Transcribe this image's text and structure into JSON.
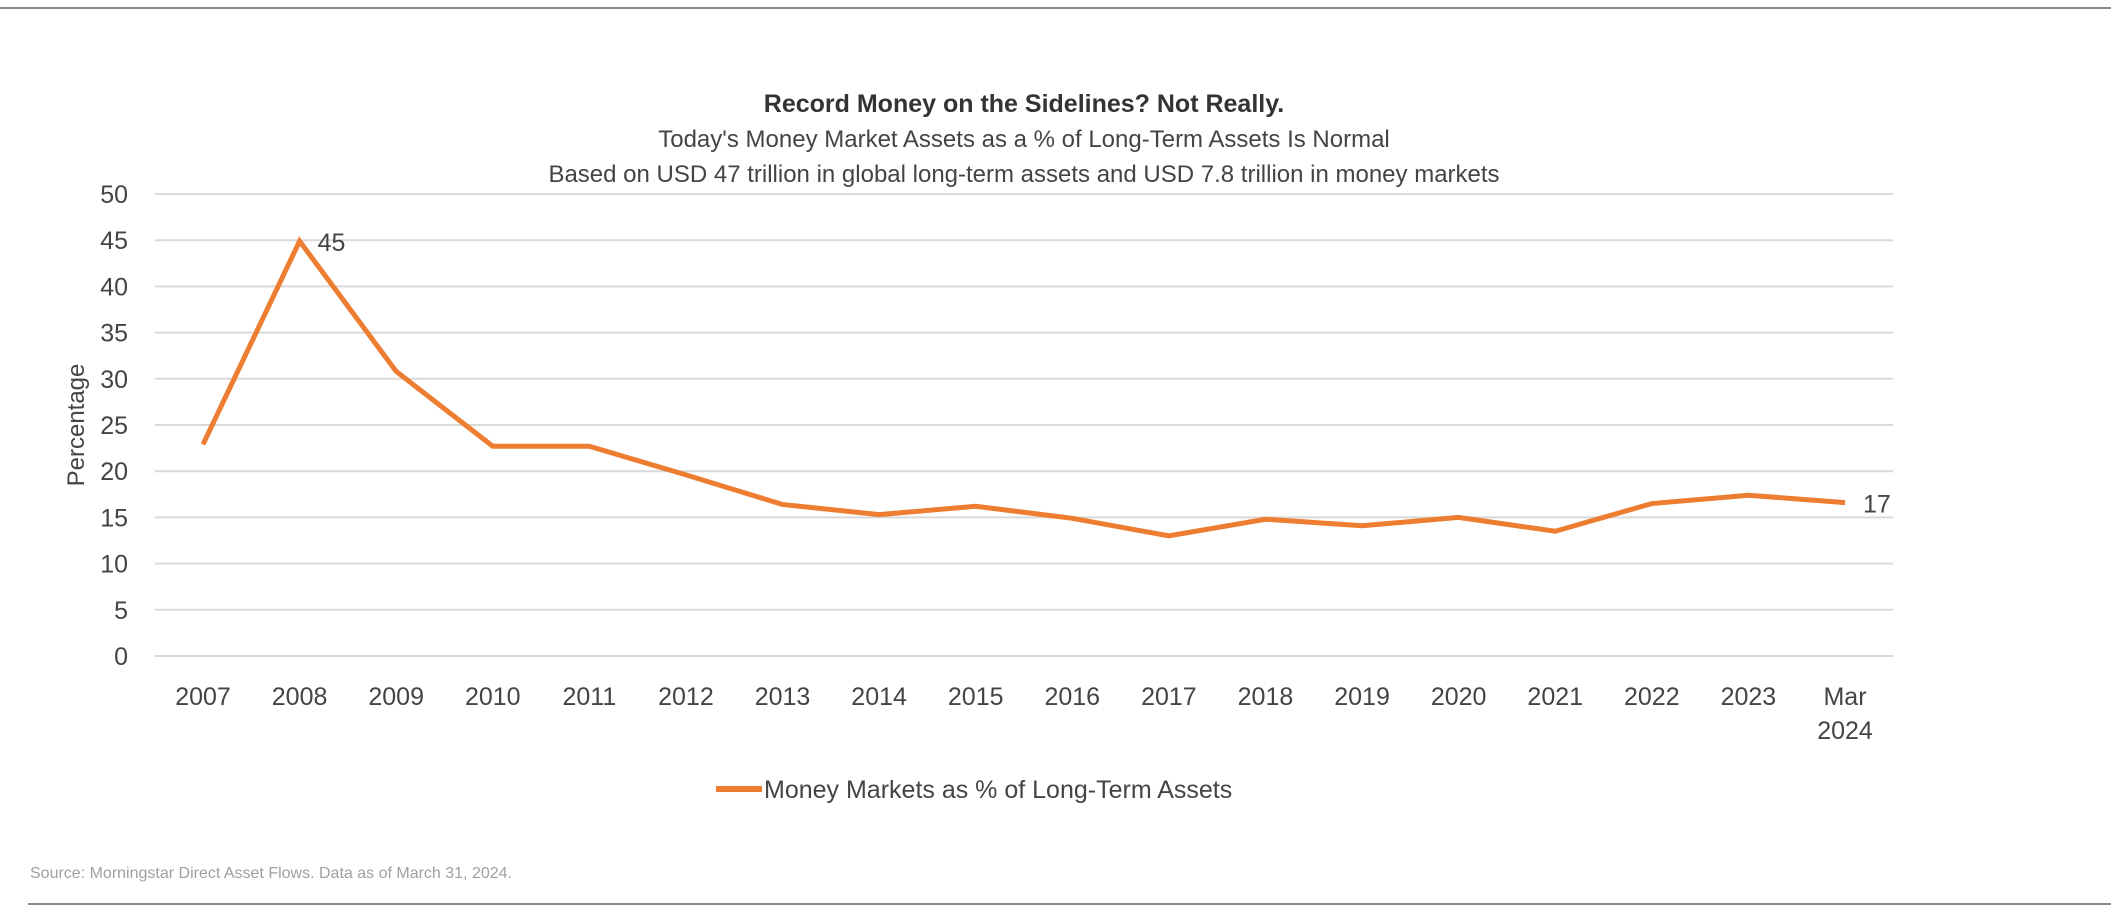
{
  "chart_data": {
    "type": "line",
    "title": "Record Money on the Sidelines? Not Really.",
    "subtitle": "Today's Money Market Assets as a % of Long-Term Assets Is Normal",
    "subtitle2": "Based on USD 47 trillion in global long-term assets and USD 7.8 trillion in money markets",
    "xlabel": "",
    "ylabel": "Percentage",
    "ylim": [
      0,
      50
    ],
    "yticks": [
      "0",
      "5",
      "10",
      "15",
      "20",
      "25",
      "30",
      "35",
      "40",
      "45",
      "50"
    ],
    "grid": true,
    "legend_position": "bottom",
    "categories": [
      "2007",
      "2008",
      "2009",
      "2010",
      "2011",
      "2012",
      "2013",
      "2014",
      "2015",
      "2016",
      "2017",
      "2018",
      "2019",
      "2020",
      "2021",
      "2022",
      "2023",
      "Mar 2024"
    ],
    "series": [
      {
        "name": "Money Markets as % of Long-Term Assets",
        "color": "#ED7D31",
        "values": [
          22.9,
          44.9,
          30.8,
          22.7,
          22.7,
          19.6,
          16.4,
          15.3,
          16.2,
          14.9,
          13.0,
          14.8,
          14.1,
          15.0,
          13.5,
          16.5,
          17.4,
          16.6
        ]
      }
    ],
    "data_labels": [
      {
        "category": "2008",
        "text": "45"
      },
      {
        "category": "Mar 2024",
        "text": "17"
      }
    ]
  },
  "source": "Source: Morningstar Direct Asset Flows. Data as of March 31, 2024."
}
